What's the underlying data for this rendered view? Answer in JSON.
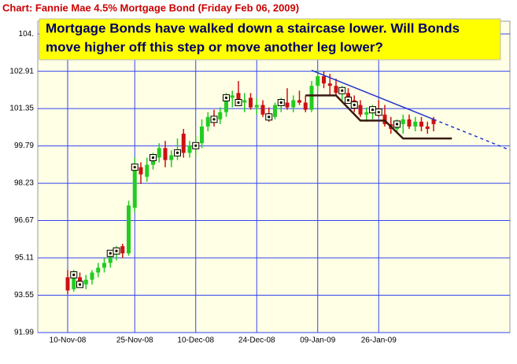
{
  "chart_data": {
    "type": "candlestick",
    "title": "Chart: Fannie Mae 4.5% Mortgage Bond (Friday Feb 06, 2009)",
    "annotation": [
      "Mortgage Bonds have walked down a staircase lower.  Will Bonds",
      "move higher off this step or move another leg lower?"
    ],
    "categories": [
      "10-Nov-08",
      null,
      null,
      null,
      null,
      null,
      null,
      null,
      null,
      null,
      null,
      "25-Nov-08",
      null,
      null,
      null,
      null,
      null,
      null,
      null,
      null,
      null,
      "10-Dec-08",
      null,
      null,
      null,
      null,
      null,
      null,
      null,
      null,
      null,
      "24-Dec-08",
      null,
      null,
      null,
      null,
      null,
      null,
      null,
      null,
      null,
      "09-Jan-09",
      null,
      null,
      null,
      null,
      null,
      null,
      null,
      null,
      null,
      "26-Jan-09",
      null,
      null,
      null,
      null,
      null,
      null,
      null,
      null,
      null
    ],
    "open": [
      94.3,
      93.8,
      94.3,
      94.0,
      94.2,
      94.5,
      94.7,
      94.9,
      95.3,
      95.6,
      95.3,
      97.2,
      98.9,
      98.5,
      99.0,
      99.3,
      99.7,
      99.2,
      99.4,
      100.3,
      99.5,
      99.8,
      99.9,
      100.6,
      101.0,
      100.9,
      101.2,
      101.8,
      102.0,
      101.6,
      101.8,
      101.4,
      101.5,
      101.1,
      101.0,
      101.5,
      101.6,
      101.4,
      101.7,
      101.6,
      101.3,
      102.3,
      102.7,
      102.4,
      102.3,
      102.0,
      102.0,
      101.7,
      101.5,
      101.1,
      101.2,
      101.3,
      101.1,
      100.7,
      100.5,
      100.7,
      100.9,
      100.6,
      100.8,
      100.6,
      100.9
    ],
    "high": [
      94.6,
      94.6,
      94.5,
      94.4,
      94.6,
      94.9,
      95.1,
      95.4,
      95.6,
      95.7,
      97.5,
      99.3,
      99.1,
      99.3,
      99.5,
      99.9,
      100.0,
      99.6,
      100.1,
      100.5,
      100.0,
      100.2,
      100.9,
      101.2,
      101.3,
      101.4,
      102.0,
      102.1,
      102.5,
      102.0,
      102.0,
      101.8,
      101.7,
      101.4,
      101.6,
      101.8,
      102.2,
      101.9,
      102.1,
      101.9,
      102.5,
      102.95,
      102.9,
      102.8,
      102.6,
      102.3,
      102.2,
      101.9,
      101.7,
      101.4,
      101.5,
      101.7,
      101.5,
      101.0,
      100.9,
      101.1,
      101.1,
      101.0,
      101.0,
      100.8,
      101.0
    ],
    "low": [
      93.6,
      93.7,
      93.9,
      93.8,
      94.0,
      94.3,
      94.5,
      94.7,
      95.0,
      95.1,
      95.2,
      97.0,
      98.2,
      98.3,
      98.8,
      99.1,
      98.9,
      98.9,
      99.2,
      99.3,
      99.3,
      99.4,
      99.7,
      100.4,
      100.6,
      100.7,
      101.0,
      101.4,
      101.5,
      101.2,
      101.3,
      101.1,
      101.0,
      100.8,
      100.9,
      101.2,
      101.3,
      101.2,
      101.5,
      101.2,
      101.2,
      102.1,
      102.2,
      101.9,
      101.9,
      101.7,
      101.6,
      101.2,
      101.0,
      100.8,
      100.9,
      101.0,
      100.6,
      100.3,
      100.3,
      100.3,
      100.5,
      100.4,
      100.4,
      100.3,
      100.4
    ],
    "close": [
      93.75,
      94.4,
      94.0,
      94.2,
      94.5,
      94.7,
      94.9,
      95.3,
      95.4,
      95.3,
      97.3,
      98.9,
      98.6,
      99.0,
      99.3,
      99.7,
      99.2,
      99.4,
      99.5,
      99.5,
      99.8,
      99.8,
      100.6,
      101.0,
      100.9,
      101.2,
      101.8,
      101.9,
      101.6,
      101.7,
      101.4,
      101.5,
      101.1,
      101.0,
      101.5,
      101.6,
      101.4,
      101.7,
      101.6,
      101.3,
      102.3,
      102.7,
      102.4,
      102.3,
      102.0,
      102.1,
      101.7,
      101.5,
      101.1,
      101.2,
      101.3,
      101.2,
      100.7,
      100.5,
      100.7,
      100.9,
      100.6,
      100.8,
      100.6,
      100.5,
      100.7
    ],
    "markers": [
      1,
      2,
      7,
      8,
      11,
      14,
      18,
      21,
      24,
      26,
      28,
      33,
      35,
      45,
      46,
      47,
      50,
      51,
      54
    ],
    "up_color": "#22cc22",
    "down_color": "#cc1111",
    "staircase": {
      "color": "#3a1a10",
      "x": [
        39,
        44,
        48,
        52,
        55,
        63
      ],
      "y": [
        101.9,
        101.9,
        100.85,
        100.85,
        100.1,
        100.1
      ]
    },
    "trend_line": {
      "color": "#2233cc",
      "x": [
        40,
        60
      ],
      "y": [
        102.95,
        100.9
      ]
    },
    "ylim": [
      91.99,
      105.0
    ],
    "yticks": [
      91.99,
      93.55,
      95.11,
      96.67,
      98.23,
      99.79,
      101.35,
      102.91,
      {
        "value": 104.47,
        "label": "104."
      }
    ],
    "grid": true
  }
}
